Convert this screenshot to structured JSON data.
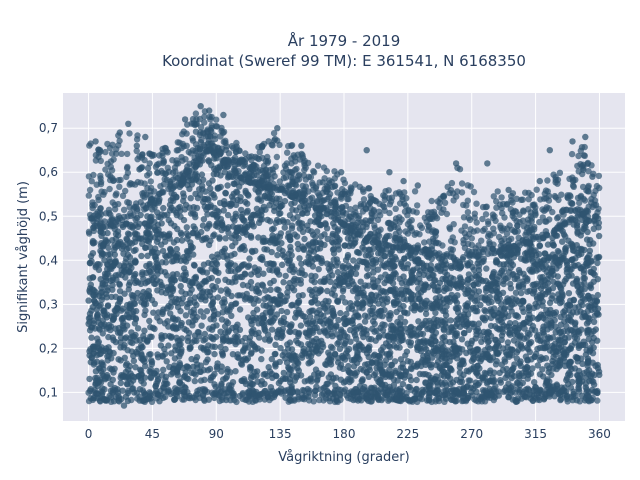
{
  "chart_data": {
    "type": "scatter",
    "title_line1": "År 1979 - 2019",
    "title_line2": "Koordinat (Sweref 99 TM): E 361541, N 6168350",
    "xlabel": "Vågriktning (grader)",
    "ylabel": "Signifikant våghöjd (m)",
    "xlim": [
      -18,
      378
    ],
    "ylim": [
      0.035,
      0.78
    ],
    "xticks": [
      0,
      45,
      90,
      135,
      180,
      225,
      270,
      315,
      360
    ],
    "xtick_labels": [
      "0",
      "45",
      "90",
      "135",
      "180",
      "225",
      "270",
      "315",
      "360"
    ],
    "yticks": [
      0.1,
      0.2,
      0.3,
      0.4,
      0.5,
      0.6,
      0.7
    ],
    "ytick_labels": [
      "0,1",
      "0,2",
      "0,3",
      "0,4",
      "0,5",
      "0,6",
      "0,7"
    ],
    "grid": true,
    "point_color": "#2f5470",
    "background_color": "#e5e5ef",
    "upper_envelope": [
      {
        "x": 0,
        "y": 0.67
      },
      {
        "x": 15,
        "y": 0.68
      },
      {
        "x": 30,
        "y": 0.7
      },
      {
        "x": 45,
        "y": 0.66
      },
      {
        "x": 60,
        "y": 0.66
      },
      {
        "x": 70,
        "y": 0.72
      },
      {
        "x": 80,
        "y": 0.75
      },
      {
        "x": 90,
        "y": 0.72
      },
      {
        "x": 100,
        "y": 0.68
      },
      {
        "x": 115,
        "y": 0.64
      },
      {
        "x": 130,
        "y": 0.7
      },
      {
        "x": 145,
        "y": 0.66
      },
      {
        "x": 160,
        "y": 0.62
      },
      {
        "x": 175,
        "y": 0.6
      },
      {
        "x": 190,
        "y": 0.58
      },
      {
        "x": 205,
        "y": 0.56
      },
      {
        "x": 225,
        "y": 0.57
      },
      {
        "x": 245,
        "y": 0.54
      },
      {
        "x": 260,
        "y": 0.62
      },
      {
        "x": 275,
        "y": 0.55
      },
      {
        "x": 290,
        "y": 0.56
      },
      {
        "x": 305,
        "y": 0.55
      },
      {
        "x": 320,
        "y": 0.58
      },
      {
        "x": 335,
        "y": 0.62
      },
      {
        "x": 350,
        "y": 0.68
      },
      {
        "x": 360,
        "y": 0.59
      }
    ],
    "dense_band": [
      {
        "x": 0,
        "lo": 0.1,
        "hi": 0.46
      },
      {
        "x": 30,
        "lo": 0.1,
        "hi": 0.5
      },
      {
        "x": 60,
        "lo": 0.1,
        "hi": 0.55
      },
      {
        "x": 85,
        "lo": 0.1,
        "hi": 0.65
      },
      {
        "x": 110,
        "lo": 0.1,
        "hi": 0.58
      },
      {
        "x": 140,
        "lo": 0.1,
        "hi": 0.55
      },
      {
        "x": 170,
        "lo": 0.1,
        "hi": 0.5
      },
      {
        "x": 200,
        "lo": 0.1,
        "hi": 0.44
      },
      {
        "x": 230,
        "lo": 0.1,
        "hi": 0.42
      },
      {
        "x": 260,
        "lo": 0.1,
        "hi": 0.4
      },
      {
        "x": 290,
        "lo": 0.1,
        "hi": 0.42
      },
      {
        "x": 320,
        "lo": 0.1,
        "hi": 0.45
      },
      {
        "x": 345,
        "lo": 0.1,
        "hi": 0.5
      },
      {
        "x": 360,
        "lo": 0.1,
        "hi": 0.48
      }
    ],
    "outliers": [
      {
        "x": 5,
        "y": 0.67
      },
      {
        "x": 8,
        "y": 0.65
      },
      {
        "x": 22,
        "y": 0.69
      },
      {
        "x": 28,
        "y": 0.71
      },
      {
        "x": 34,
        "y": 0.66
      },
      {
        "x": 40,
        "y": 0.68
      },
      {
        "x": 62,
        "y": 0.62
      },
      {
        "x": 68,
        "y": 0.72
      },
      {
        "x": 76,
        "y": 0.72
      },
      {
        "x": 79,
        "y": 0.75
      },
      {
        "x": 85,
        "y": 0.74
      },
      {
        "x": 95,
        "y": 0.73
      },
      {
        "x": 120,
        "y": 0.63
      },
      {
        "x": 133,
        "y": 0.7
      },
      {
        "x": 150,
        "y": 0.66
      },
      {
        "x": 178,
        "y": 0.6
      },
      {
        "x": 196,
        "y": 0.65
      },
      {
        "x": 212,
        "y": 0.6
      },
      {
        "x": 222,
        "y": 0.58
      },
      {
        "x": 232,
        "y": 0.57
      },
      {
        "x": 248,
        "y": 0.54
      },
      {
        "x": 259,
        "y": 0.62
      },
      {
        "x": 281,
        "y": 0.62
      },
      {
        "x": 296,
        "y": 0.56
      },
      {
        "x": 318,
        "y": 0.58
      },
      {
        "x": 325,
        "y": 0.65
      },
      {
        "x": 341,
        "y": 0.67
      },
      {
        "x": 350,
        "y": 0.68
      },
      {
        "x": 355,
        "y": 0.59
      },
      {
        "x": 18,
        "y": 0.08
      },
      {
        "x": 25,
        "y": 0.07
      },
      {
        "x": 50,
        "y": 0.08
      }
    ]
  }
}
